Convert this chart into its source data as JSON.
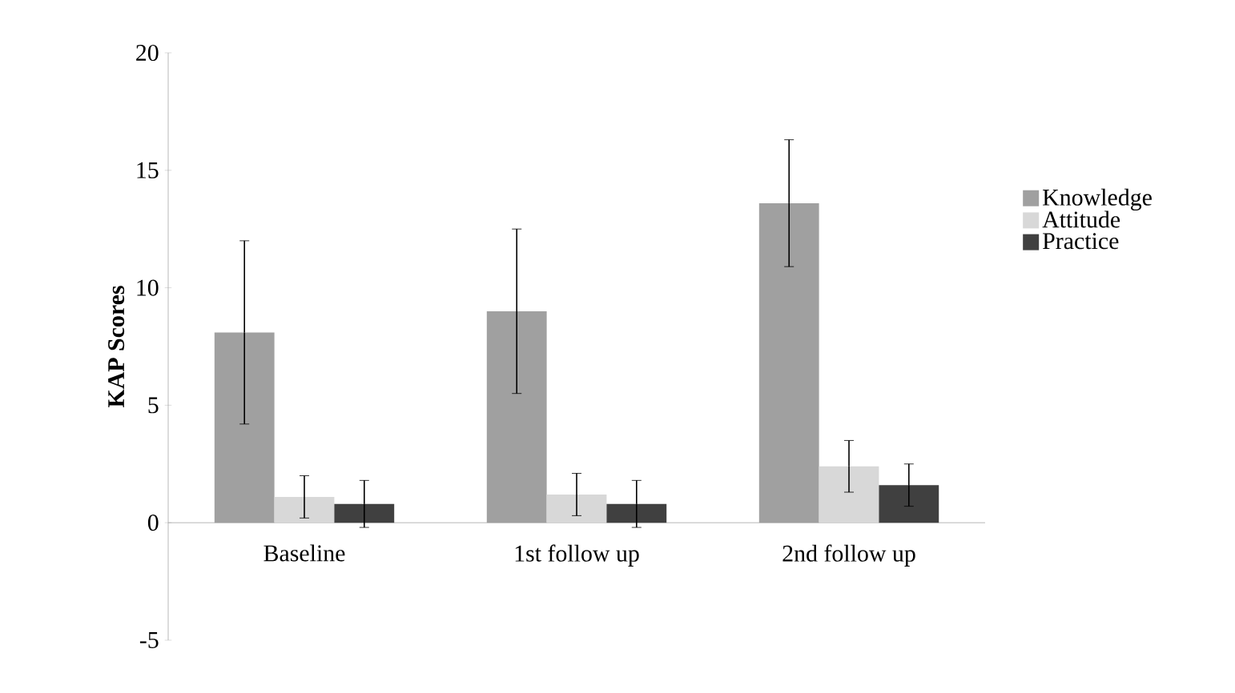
{
  "chart_data": {
    "type": "bar",
    "ylabel": "KAP Scores",
    "categories": [
      "Baseline",
      "1st follow up",
      "2nd follow up"
    ],
    "series": [
      {
        "name": "Knowledge",
        "color": "#a0a0a0",
        "values": [
          8.1,
          9.0,
          13.6
        ],
        "errors": [
          3.9,
          3.5,
          2.7
        ]
      },
      {
        "name": "Attitude",
        "color": "#d8d8d8",
        "values": [
          1.1,
          1.2,
          2.4
        ],
        "errors": [
          0.9,
          0.9,
          1.1
        ]
      },
      {
        "name": "Practice",
        "color": "#404040",
        "values": [
          0.8,
          0.8,
          1.6
        ],
        "errors": [
          1.0,
          1.0,
          0.9
        ]
      }
    ],
    "ylim": [
      -5,
      20
    ],
    "yticks": [
      -5,
      0,
      5,
      10,
      15,
      20
    ],
    "legend": "right"
  }
}
